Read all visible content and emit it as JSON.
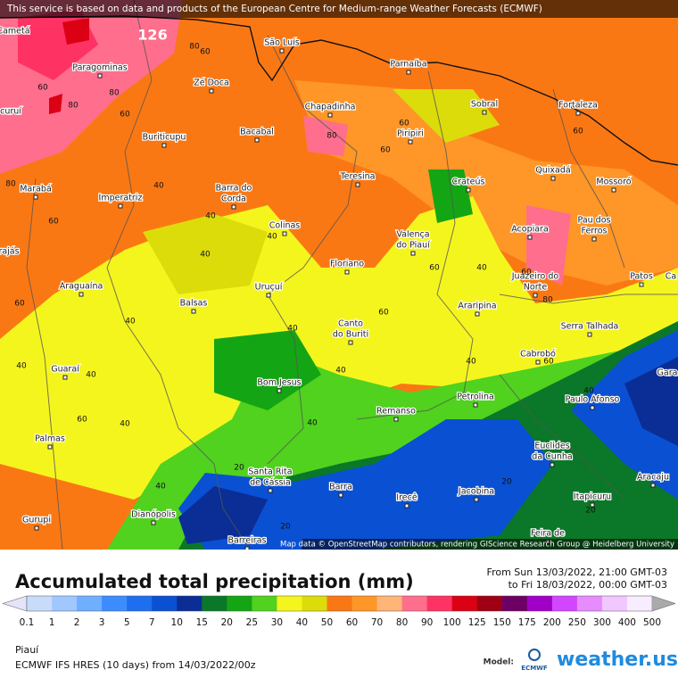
{
  "notice": "This service is based on data and products of the European Centre for Medium-range Weather Forecasts (ECMWF)",
  "attribution": "Map data © OpenStreetMap contributors, rendering GIScience Research Group @ Heidelberg University",
  "peak_label": "126",
  "cities": [
    "Cametá",
    "Paragominas",
    "Zé Doca",
    "São Luís",
    "Parnaíba",
    "Fortaleza",
    "Sobral",
    "Chapadinha",
    "curuí",
    "Buriticupu",
    "Bacabal",
    "Piripiri",
    "Quixadá",
    "Marabá",
    "Imperatriz",
    "Barra do",
    "Corda",
    "Teresina",
    "Crateús",
    "Mossoró",
    "Colinas",
    "Valença",
    "do Piauí",
    "Acopiara",
    "Pau dos",
    "Ferros",
    "rajás",
    "Floriano",
    "Araguaína",
    "Juazeiro do",
    "Norte",
    "Patos",
    "Uruçuí",
    "Balsas",
    "Araripina",
    "Canto",
    "do Buriti",
    "Serra Talhada",
    "Guaraí",
    "Cabrobó",
    "Bom Jesus",
    "Petrolina",
    "Paulo Afonso",
    "Remanso",
    "Palmas",
    "Euclides",
    "da Cunha",
    "Santa Rita",
    "de Cássia",
    "Barra",
    "Irecê",
    "Jacobina",
    "Itapicuru",
    "Aracaju",
    "Gurupi",
    "Dianópolis",
    "Barreiras",
    "Feira de",
    "Gara",
    "Ca"
  ],
  "contour_labels": [
    60,
    80,
    60,
    80,
    80,
    60,
    80,
    60,
    60,
    60,
    80,
    60,
    40,
    40,
    60,
    40,
    40,
    40,
    60,
    60,
    40,
    40,
    40,
    60,
    60,
    40,
    40,
    40,
    20,
    40,
    20,
    20,
    20,
    40,
    40,
    60,
    80,
    40
  ],
  "legend": {
    "title": "Accumulated total precipitation (mm)",
    "period_from": "From Sun 13/03/2022, 21:00 GMT-03",
    "period_to": "to Fri 18/03/2022, 00:00 GMT-03",
    "ticks": [
      0.1,
      1,
      2,
      3,
      5,
      7,
      10,
      15,
      20,
      25,
      30,
      40,
      50,
      60,
      70,
      80,
      90,
      100,
      125,
      150,
      175,
      200,
      250,
      300,
      400,
      500
    ],
    "colors": [
      "#c8dcfa",
      "#a0c8ff",
      "#6eb0ff",
      "#3c8cff",
      "#1e6ef0",
      "#0a50d2",
      "#0a2d96",
      "#0a7828",
      "#14a514",
      "#50d21e",
      "#f5f51e",
      "#dcdc0a",
      "#fa7814",
      "#ff9628",
      "#ffb478",
      "#ff6e8c",
      "#ff3264",
      "#dc0014",
      "#a00014",
      "#6e0064",
      "#a000c8",
      "#d246ff",
      "#e68cff",
      "#f0c8ff",
      "#f8ecff"
    ],
    "under_color": "#e4e4f8",
    "over_color": "#aaaaaa"
  },
  "footer": {
    "region": "Piauí",
    "model_run": "ECMWF IFS HRES (10 days) from 14/03/2022/00z",
    "model_label": "Model:",
    "model_logo": "ECMWF",
    "brand": "weather.us"
  }
}
